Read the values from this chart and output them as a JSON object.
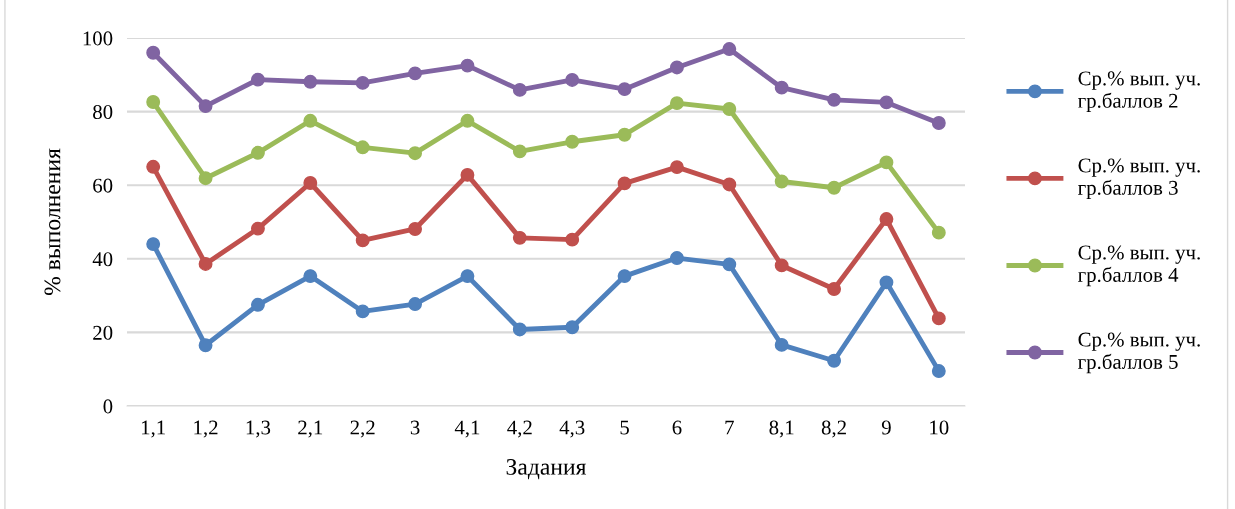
{
  "chart_data": {
    "type": "line",
    "xlabel": "Задания",
    "ylabel": "% выполнения",
    "categories": [
      "1,1",
      "1,2",
      "1,3",
      "2,1",
      "2,2",
      "3",
      "4,1",
      "4,2",
      "4,3",
      "5",
      "6",
      "7",
      "8,1",
      "8,2",
      "9",
      "10"
    ],
    "series": [
      {
        "name": "Ср.% вып. уч. гр.баллов 2",
        "color": "#4f81bd",
        "values": [
          44.0,
          16.5,
          27.5,
          35.3,
          25.7,
          27.7,
          35.3,
          20.8,
          21.4,
          35.3,
          40.2,
          38.5,
          16.6,
          12.3,
          33.6,
          9.5
        ]
      },
      {
        "name": "Ср.% вып. уч. гр.баллов 3",
        "color": "#c0504d",
        "values": [
          65.0,
          38.6,
          48.2,
          60.6,
          45.0,
          48.1,
          62.8,
          45.7,
          45.2,
          60.5,
          64.9,
          60.2,
          38.2,
          31.8,
          50.8,
          23.8
        ]
      },
      {
        "name": "Ср.% вып. уч. гр.баллов 4",
        "color": "#9bbb59",
        "values": [
          82.6,
          61.9,
          68.8,
          77.5,
          70.3,
          68.7,
          77.5,
          69.2,
          71.8,
          73.7,
          82.3,
          80.7,
          61.0,
          59.3,
          66.2,
          47.1
        ]
      },
      {
        "name": "Ср.% вып. уч. гр.баллов 5",
        "color": "#8064a2",
        "values": [
          96.0,
          81.5,
          88.7,
          88.1,
          87.8,
          90.4,
          92.5,
          85.9,
          88.6,
          86.1,
          92.0,
          97.0,
          86.5,
          83.2,
          82.5,
          76.9
        ]
      }
    ],
    "ylim": [
      0,
      100
    ],
    "yticks": [
      0,
      20,
      40,
      60,
      80,
      100
    ],
    "grid": "y",
    "legend": "right",
    "marker": "circle",
    "line_style": "solid"
  }
}
